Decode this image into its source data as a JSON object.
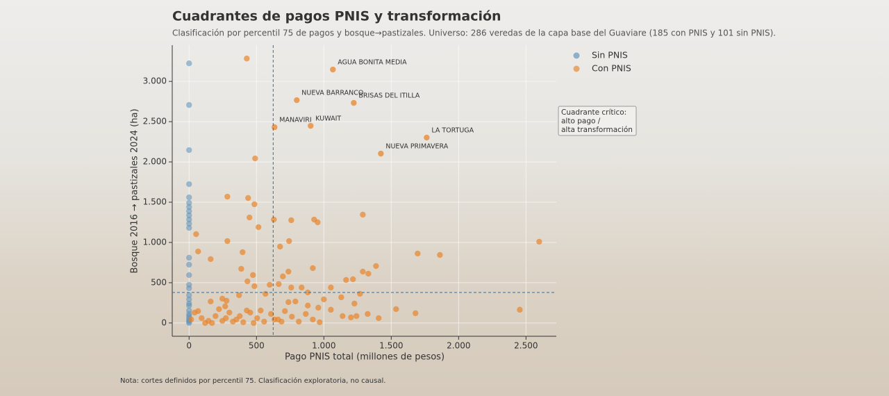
{
  "chart_data": {
    "type": "scatter",
    "title": "Cuadrantes de pagos PNIS y transformación",
    "subtitle": "Clasificación por percentil 75 de pagos y bosque→pastizales. Universo: 286 veredas de la capa base del Guaviare (185 con PNIS y 101 sin PNIS).",
    "x_label": "Pago PNIS total (millones de pesos)",
    "y_label": "Bosque 2016 → pastizales 2024 (ha)",
    "note": "Nota: cortes definidos por percentil 75. Clasificación exploratoria, no causal.",
    "xlim": [
      -125,
      2725
    ],
    "ylim": [
      -165,
      3450
    ],
    "xticks": [
      0,
      500,
      {
        "value": 1000,
        "label": "1.000"
      },
      {
        "value": 1500,
        "label": "1.500"
      },
      {
        "value": 2000,
        "label": "2.000"
      },
      {
        "value": 2500,
        "label": "2.500"
      }
    ],
    "yticks": [
      0,
      500,
      {
        "value": 1000,
        "label": "1.000"
      },
      {
        "value": 1500,
        "label": "1.500"
      },
      {
        "value": 2000,
        "label": "2.000"
      },
      {
        "value": 2500,
        "label": "2.500"
      },
      {
        "value": 3000,
        "label": "3.000"
      }
    ],
    "grid": true,
    "legend": "upper-right",
    "thresholds": {
      "x": 624,
      "y": 379,
      "color": "#2a6fa8"
    },
    "series": [
      {
        "name": "Sin PNIS",
        "color": "#5b8fb9",
        "x": [
          0,
          0,
          0,
          0,
          0,
          0,
          0,
          0,
          0,
          0,
          0,
          0,
          0,
          0,
          0,
          0,
          0,
          0,
          0,
          0,
          0,
          0,
          0,
          0,
          0,
          0,
          0,
          0
        ],
        "values": [
          3224,
          2707,
          2147,
          1724,
          1560,
          1491,
          1440,
          1388,
          1336,
          1284,
          1233,
          1181,
          810,
          724,
          595,
          474,
          431,
          345,
          293,
          241,
          216,
          155,
          112,
          86,
          60,
          34,
          17,
          0
        ]
      },
      {
        "name": "Con PNIS",
        "color": "#e8852a",
        "x": [
          428,
          490,
          284,
          438,
          485,
          448,
          515,
          629,
          758,
          928,
          954,
          1289,
          52,
          284,
          2598,
          675,
          742,
          67,
          397,
          1696,
          1861,
          160,
          1387,
          1289,
          1330,
          387,
          918,
          737,
          474,
          696,
          433,
          1165,
          1216,
          665,
          485,
          598,
          758,
          835,
          1052,
          881,
          1268,
          1129,
          247,
          1000,
          567,
          371,
          278,
          160,
          737,
          789,
          1227,
          881,
          959,
          268,
          1536,
          2454,
          1052,
          1680,
          1325,
          1139,
          1201,
          1407,
          1242,
          41,
          93,
          144,
          196,
          247,
          299,
          351,
          402,
          454,
          505,
          557,
          608,
          660,
          711,
          763,
          814,
          866,
          918,
          969,
          15,
          67,
          119,
          222,
          325,
          428,
          531,
          634,
          686,
          479,
          376,
          273,
          170
        ],
        "values": [
          3284,
          2043,
          1569,
          1552,
          1474,
          1310,
          1190,
          1284,
          1276,
          1284,
          1250,
          1345,
          1103,
          1017,
          1009,
          948,
          1017,
          888,
          879,
          862,
          845,
          793,
          707,
          638,
          612,
          672,
          681,
          638,
          595,
          578,
          517,
          534,
          543,
          483,
          457,
          474,
          440,
          440,
          440,
          379,
          362,
          319,
          302,
          293,
          362,
          345,
          276,
          267,
          259,
          267,
          241,
          216,
          190,
          207,
          172,
          164,
          164,
          121,
          112,
          86,
          69,
          60,
          86,
          129,
          60,
          26,
          86,
          26,
          129,
          43,
          9,
          129,
          60,
          17,
          112,
          43,
          147,
          78,
          17,
          112,
          43,
          9,
          43,
          147,
          0,
          172,
          17,
          155,
          155,
          43,
          17,
          0,
          86,
          60,
          0
        ]
      }
    ],
    "labels": [
      {
        "text": "AGUA BONITA MEDIA",
        "x": 1067,
        "y": 3147
      },
      {
        "text": "NUEVA BARRANCO",
        "x": 799,
        "y": 2767
      },
      {
        "text": "BRISAS DEL ITILLA",
        "x": 1222,
        "y": 2733
      },
      {
        "text": "MANAVIRI",
        "x": 634,
        "y": 2431
      },
      {
        "text": "KUWAIT",
        "x": 902,
        "y": 2448
      },
      {
        "text": "LA TORTUGA",
        "x": 1763,
        "y": 2302
      },
      {
        "text": "NUEVA PRIMAVERA",
        "x": 1423,
        "y": 2103
      }
    ],
    "annotation": [
      "Cuadrante crítico:",
      "alto pago /",
      "alta transformación"
    ]
  }
}
